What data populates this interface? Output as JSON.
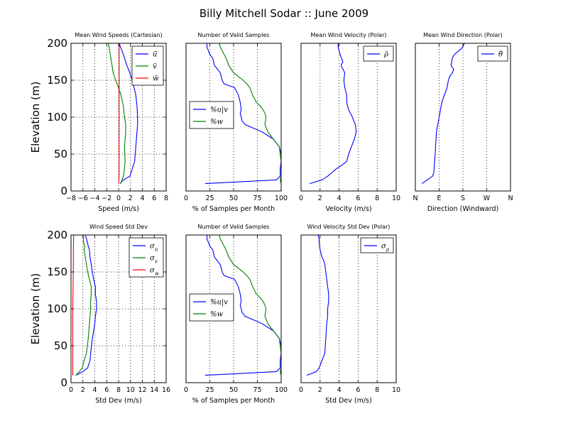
{
  "figure": {
    "title": "Billy Mitchell Sodar :: June 2009"
  },
  "chart_data": [
    {
      "id": "p1",
      "type": "line",
      "title": "Mean Wind Speeds (Cartesian)",
      "xlabel": "Speed (m/s)",
      "ylabel": "Elevation (m)",
      "xlim": [
        -8,
        8
      ],
      "ylim": [
        0,
        200
      ],
      "xticks": [
        -8,
        -6,
        -4,
        -2,
        0,
        2,
        4,
        6,
        8
      ],
      "xticklabels": [
        "−8",
        "−6",
        "−4",
        "−2",
        "0",
        "2",
        "4",
        "6",
        "8"
      ],
      "yticks": [
        0,
        50,
        100,
        150,
        200
      ],
      "yticklabels": [
        "0",
        "50",
        "100",
        "150",
        "200"
      ],
      "grid": true,
      "legend_position": "upper right",
      "series": [
        {
          "name": "ū",
          "color": "#0000ff",
          "x": [
            0.2,
            0.8,
            1.9,
            2.3,
            2.7,
            2.9,
            3.1,
            3.2,
            3.2,
            3.1,
            2.9,
            2.6,
            2.3,
            1.9,
            1.4,
            1.0,
            0.6,
            0.3,
            0.2,
            0.1
          ],
          "y": [
            10,
            15,
            20,
            30,
            40,
            60,
            80,
            90,
            100,
            115,
            130,
            140,
            150,
            160,
            170,
            180,
            190,
            195,
            198,
            200
          ]
        },
        {
          "name": "v̄",
          "color": "#008000",
          "x": [
            0.3,
            0.6,
            0.8,
            1.0,
            1.1,
            1.0,
            1.2,
            1.2,
            1.0,
            0.8,
            0.4,
            0.0,
            -0.5,
            -0.9,
            -1.1,
            -1.3,
            -1.5,
            -1.6,
            -1.7,
            -1.6
          ],
          "y": [
            10,
            15,
            20,
            30,
            40,
            60,
            80,
            90,
            100,
            115,
            130,
            140,
            150,
            160,
            170,
            180,
            190,
            195,
            198,
            200
          ]
        },
        {
          "name": "w̄",
          "color": "#ff0000",
          "x": [
            0.0,
            0.05,
            0.1,
            0.1,
            0.1,
            0.1,
            0.1,
            0.1,
            0.1,
            0.1,
            0.1,
            0.1,
            0.1
          ],
          "y": [
            10,
            15,
            20,
            40,
            60,
            80,
            100,
            120,
            140,
            160,
            180,
            190,
            200
          ]
        }
      ]
    },
    {
      "id": "p2",
      "type": "line",
      "title": "Number of Valid Samples",
      "xlabel": "% of Samples per Month",
      "ylabel": "",
      "xlim": [
        0,
        100
      ],
      "ylim": [
        0,
        200
      ],
      "xticks": [
        0,
        25,
        50,
        75,
        100
      ],
      "xticklabels": [
        "0",
        "25",
        "50",
        "75",
        "100"
      ],
      "yticks": [],
      "yticklabels": [],
      "grid": true,
      "legend_position": "center left",
      "series": [
        {
          "name": "%u|v",
          "color": "#0000ff",
          "x": [
            20,
            95,
            99,
            99,
            100,
            100,
            98,
            92,
            86,
            80,
            62,
            59,
            58,
            57,
            58,
            57,
            55,
            51,
            40,
            38,
            36,
            30,
            28,
            25,
            22,
            22
          ],
          "y": [
            10,
            15,
            20,
            30,
            40,
            50,
            60,
            70,
            75,
            80,
            90,
            95,
            100,
            105,
            110,
            120,
            130,
            140,
            145,
            150,
            160,
            170,
            180,
            185,
            195,
            200
          ]
        },
        {
          "name": "%w",
          "color": "#008000",
          "x": [
            100,
            99,
            100,
            100,
            100,
            99,
            98,
            92,
            86,
            83,
            84,
            83,
            81,
            78,
            74,
            70,
            67,
            64,
            60,
            55,
            50,
            45,
            42,
            40,
            38,
            36,
            35
          ],
          "y": [
            10,
            15,
            20,
            30,
            40,
            50,
            60,
            70,
            80,
            90,
            100,
            105,
            110,
            115,
            120,
            130,
            140,
            145,
            150,
            155,
            160,
            170,
            180,
            185,
            190,
            195,
            200
          ]
        }
      ]
    },
    {
      "id": "p3",
      "type": "line",
      "title": "Mean Wind Velocity (Polar)",
      "xlabel": "Velocity (m/s)",
      "ylabel": "",
      "xlim": [
        0,
        10
      ],
      "ylim": [
        0,
        200
      ],
      "xticks": [
        0,
        2,
        4,
        6,
        8,
        10
      ],
      "xticklabels": [
        "0",
        "2",
        "4",
        "6",
        "8",
        "10"
      ],
      "yticks": [],
      "yticklabels": [],
      "grid": true,
      "legend_position": "upper right",
      "series": [
        {
          "name": "ρ̄",
          "color": "#0000ff",
          "x": [
            0.9,
            2.2,
            2.8,
            3.7,
            4.3,
            4.8,
            5.0,
            5.3,
            5.6,
            5.8,
            5.7,
            5.4,
            5.0,
            4.8,
            4.8,
            4.6,
            4.5,
            4.6,
            4.4,
            4.2,
            4.4,
            4.1,
            4.0,
            3.9,
            3.9
          ],
          "y": [
            10,
            15,
            20,
            30,
            35,
            40,
            50,
            60,
            70,
            80,
            90,
            100,
            110,
            120,
            130,
            140,
            150,
            160,
            165,
            170,
            175,
            185,
            190,
            195,
            200
          ]
        }
      ]
    },
    {
      "id": "p4",
      "type": "line",
      "title": "Mean Wind Direction (Polar)",
      "xlabel": "Direction (Windward)",
      "ylabel": "",
      "xlim": [
        0,
        360
      ],
      "ylim": [
        0,
        200
      ],
      "xticks": [
        0,
        90,
        180,
        270,
        360
      ],
      "xticklabels": [
        "N",
        "E",
        "S",
        "W",
        "N"
      ],
      "yticks": [],
      "yticklabels": [],
      "grid": true,
      "legend_position": "upper right",
      "series": [
        {
          "name": "θ̄",
          "color": "#0000ff",
          "x": [
            25,
            45,
            65,
            70,
            72,
            75,
            78,
            80,
            85,
            90,
            95,
            100,
            110,
            120,
            125,
            130,
            140,
            145,
            135,
            140,
            148,
            165,
            180,
            185
          ],
          "y": [
            10,
            15,
            20,
            25,
            35,
            50,
            70,
            80,
            90,
            100,
            110,
            120,
            130,
            140,
            150,
            155,
            160,
            165,
            170,
            180,
            185,
            190,
            195,
            200
          ]
        }
      ]
    },
    {
      "id": "p5",
      "type": "line",
      "title": "Wind Speed Std Dev",
      "xlabel": "Std Dev (m/s)",
      "ylabel": "Elevation (m)",
      "xlim": [
        0,
        16
      ],
      "ylim": [
        0,
        200
      ],
      "xticks": [
        0,
        2,
        4,
        6,
        8,
        10,
        12,
        14,
        16
      ],
      "xticklabels": [
        "0",
        "2",
        "4",
        "6",
        "8",
        "10",
        "12",
        "14",
        "16"
      ],
      "yticks": [
        0,
        50,
        100,
        150,
        200
      ],
      "yticklabels": [
        "0",
        "50",
        "100",
        "150",
        "200"
      ],
      "grid": true,
      "legend_position": "upper right",
      "series": [
        {
          "name": "σu",
          "color": "#0000ff",
          "x": [
            0.8,
            2.0,
            2.8,
            3.2,
            3.3,
            3.6,
            4.0,
            4.1,
            4.3,
            4.3,
            4.1,
            4.1,
            3.8,
            3.6,
            3.4,
            3.2,
            3.1,
            2.9,
            2.6,
            2.4
          ],
          "y": [
            10,
            15,
            20,
            30,
            40,
            60,
            80,
            90,
            100,
            110,
            120,
            130,
            140,
            150,
            160,
            170,
            180,
            185,
            195,
            200
          ]
        },
        {
          "name": "σv",
          "color": "#008000",
          "x": [
            0.8,
            1.4,
            1.9,
            2.2,
            2.6,
            2.9,
            3.1,
            3.3,
            3.3,
            3.4,
            3.4,
            3.1,
            2.8,
            2.6,
            2.4,
            2.2,
            2.3,
            2.1,
            2.1,
            2.0
          ],
          "y": [
            10,
            15,
            20,
            30,
            40,
            60,
            80,
            100,
            110,
            120,
            130,
            140,
            150,
            160,
            170,
            180,
            185,
            190,
            195,
            200
          ]
        },
        {
          "name": "σw",
          "color": "#ff0000",
          "x": [
            0.3,
            0.3,
            0.3,
            0.3,
            0.3,
            0.35,
            0.4,
            0.4,
            0.45
          ],
          "y": [
            10,
            20,
            50,
            80,
            100,
            130,
            160,
            180,
            200
          ]
        }
      ]
    },
    {
      "id": "p6",
      "type": "line",
      "title": "Number of Valid Samples",
      "xlabel": "% of Samples per Month",
      "ylabel": "",
      "xlim": [
        0,
        100
      ],
      "ylim": [
        0,
        200
      ],
      "xticks": [
        0,
        25,
        50,
        75,
        100
      ],
      "xticklabels": [
        "0",
        "25",
        "50",
        "75",
        "100"
      ],
      "yticks": [],
      "yticklabels": [],
      "grid": true,
      "legend_position": "center left",
      "series": [
        {
          "name": "%u|v",
          "color": "#0000ff",
          "x": [
            20,
            95,
            99,
            99,
            100,
            100,
            98,
            92,
            86,
            80,
            62,
            59,
            58,
            57,
            58,
            57,
            55,
            51,
            40,
            38,
            36,
            30,
            28,
            25,
            22,
            22
          ],
          "y": [
            10,
            15,
            20,
            30,
            40,
            50,
            60,
            70,
            75,
            80,
            90,
            95,
            100,
            105,
            110,
            120,
            130,
            140,
            145,
            150,
            160,
            170,
            180,
            185,
            195,
            200
          ]
        },
        {
          "name": "%w",
          "color": "#008000",
          "x": [
            100,
            99,
            100,
            100,
            100,
            99,
            98,
            92,
            86,
            83,
            84,
            83,
            81,
            78,
            74,
            70,
            67,
            64,
            60,
            55,
            50,
            45,
            42,
            40,
            38,
            36,
            35
          ],
          "y": [
            10,
            15,
            20,
            30,
            40,
            50,
            60,
            70,
            80,
            90,
            100,
            105,
            110,
            115,
            120,
            130,
            140,
            145,
            150,
            155,
            160,
            170,
            180,
            185,
            190,
            195,
            200
          ]
        }
      ]
    },
    {
      "id": "p7",
      "type": "line",
      "title": "Wind Velocity Std Dev (Polar)",
      "xlabel": "Std Dev (m/s)",
      "ylabel": "",
      "xlim": [
        0,
        10
      ],
      "ylim": [
        0,
        200
      ],
      "xticks": [
        0,
        2,
        4,
        6,
        8,
        10
      ],
      "xticklabels": [
        "0",
        "2",
        "4",
        "6",
        "8",
        "10"
      ],
      "yticks": [],
      "yticklabels": [],
      "grid": true,
      "legend_position": "upper right",
      "series": [
        {
          "name": "σρ",
          "color": "#0000ff",
          "x": [
            0.6,
            1.6,
            1.9,
            2.2,
            2.5,
            2.6,
            2.7,
            2.8,
            2.8,
            2.9,
            2.9,
            2.8,
            2.7,
            2.6,
            2.5,
            2.4,
            2.2,
            2.0,
            1.9,
            1.9,
            1.8
          ],
          "y": [
            10,
            15,
            20,
            30,
            40,
            60,
            80,
            90,
            100,
            110,
            120,
            130,
            140,
            150,
            160,
            165,
            170,
            180,
            190,
            195,
            200
          ]
        }
      ]
    }
  ]
}
